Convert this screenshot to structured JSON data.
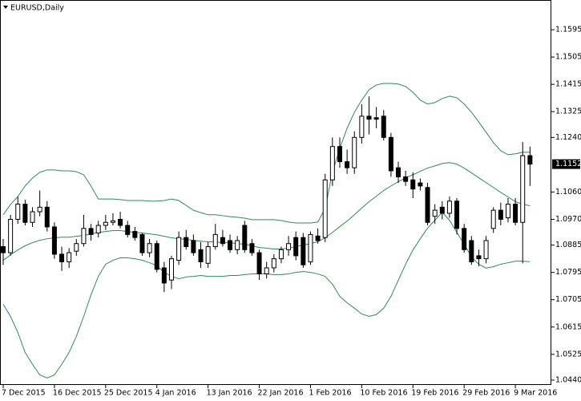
{
  "chart_data": {
    "type": "candlestick",
    "title": "EURUSD,Daily",
    "categories": [
      "7 Dec 2015",
      null,
      null,
      null,
      null,
      null,
      null,
      "16 Dec 2015",
      null,
      null,
      null,
      null,
      null,
      null,
      "25 Dec 2015",
      null,
      null,
      null,
      null,
      null,
      null,
      "4 Jan 2016",
      null,
      null,
      null,
      null,
      null,
      null,
      "13 Jan 2016",
      null,
      null,
      null,
      null,
      null,
      null,
      "22 Jan 2016",
      null,
      null,
      null,
      null,
      null,
      null,
      "1 Feb 2016",
      null,
      null,
      null,
      null,
      null,
      null,
      "10 Feb 2016",
      null,
      null,
      null,
      null,
      null,
      null,
      "19 Feb 2016",
      null,
      null,
      null,
      null,
      null,
      null,
      "29 Feb 2016",
      null,
      null,
      null,
      null,
      null,
      null,
      "9 Mar 2016",
      null,
      null
    ],
    "open": [
      1.088,
      1.086,
      1.097,
      1.102,
      1.096,
      1.0995,
      1.101,
      1.0945,
      1.0855,
      1.083,
      1.0865,
      1.089,
      1.094,
      1.0925,
      1.095,
      1.096,
      1.097,
      1.095,
      1.093,
      1.092,
      1.086,
      1.089,
      1.081,
      1.077,
      1.0835,
      1.091,
      1.09,
      1.087,
      1.0825,
      1.088,
      1.091,
      1.09,
      1.087,
      1.095,
      1.089,
      1.086,
      1.079,
      1.081,
      1.084,
      1.087,
      1.091,
      1.091,
      1.083,
      1.0915,
      1.091,
      1.11,
      1.121,
      1.116,
      1.114,
      1.124,
      1.131,
      1.1305,
      1.131,
      1.124,
      1.114,
      1.111,
      1.11,
      1.109,
      1.1075,
      1.098,
      1.101,
      1.099,
      1.103,
      1.094,
      1.09,
      1.085,
      1.084,
      1.094,
      1.1,
      1.0975,
      1.102,
      1.096,
      1.118
    ],
    "high": [
      1.0905,
      1.0985,
      1.1045,
      1.1035,
      1.101,
      1.1065,
      1.103,
      1.096,
      1.088,
      1.0875,
      1.0905,
      1.0985,
      1.0955,
      1.0965,
      1.0985,
      1.099,
      1.0995,
      1.0965,
      1.0945,
      1.0925,
      1.0905,
      1.09,
      1.083,
      1.085,
      1.093,
      1.0935,
      1.092,
      1.0895,
      1.0895,
      1.0955,
      1.0935,
      1.092,
      1.0915,
      1.0965,
      1.0905,
      1.087,
      1.083,
      1.0855,
      1.088,
      1.0915,
      1.093,
      1.0925,
      1.093,
      1.094,
      1.112,
      1.124,
      1.124,
      1.12,
      1.126,
      1.135,
      1.1375,
      1.134,
      1.133,
      1.1255,
      1.116,
      1.113,
      1.1125,
      1.1105,
      1.109,
      1.102,
      1.103,
      1.1045,
      1.104,
      1.0955,
      1.0915,
      1.087,
      1.0915,
      1.101,
      1.1025,
      1.104,
      1.104,
      1.1225,
      1.121
    ],
    "low": [
      1.082,
      1.085,
      1.0955,
      1.095,
      1.0945,
      1.098,
      1.093,
      1.084,
      1.08,
      1.081,
      1.085,
      1.088,
      1.09,
      1.091,
      1.0935,
      1.095,
      1.094,
      1.091,
      1.09,
      1.085,
      1.0845,
      1.0795,
      1.073,
      1.074,
      1.082,
      1.087,
      1.085,
      1.081,
      1.081,
      1.087,
      1.088,
      1.086,
      1.0855,
      1.086,
      1.085,
      1.077,
      1.0775,
      1.0795,
      1.0825,
      1.085,
      1.0835,
      1.081,
      1.082,
      1.089,
      1.0895,
      1.108,
      1.114,
      1.112,
      1.112,
      1.122,
      1.125,
      1.127,
      1.123,
      1.111,
      1.109,
      1.108,
      1.104,
      1.1065,
      1.095,
      1.0955,
      1.097,
      1.0975,
      1.092,
      1.086,
      1.082,
      1.0815,
      1.0825,
      1.0925,
      1.095,
      1.096,
      1.095,
      1.0825,
      1.108
    ],
    "close": [
      1.086,
      1.097,
      1.102,
      1.096,
      1.0995,
      1.101,
      1.0945,
      1.0855,
      1.083,
      1.086,
      1.089,
      1.094,
      1.092,
      1.095,
      1.096,
      1.0965,
      1.095,
      1.092,
      1.091,
      1.086,
      1.089,
      1.0805,
      1.076,
      1.084,
      1.091,
      1.088,
      1.086,
      1.083,
      1.088,
      1.092,
      1.089,
      1.087,
      1.09,
      1.087,
      1.086,
      1.079,
      1.081,
      1.084,
      1.087,
      1.089,
      1.085,
      1.082,
      1.092,
      1.09,
      1.11,
      1.121,
      1.116,
      1.114,
      1.124,
      1.131,
      1.13,
      1.13,
      1.124,
      1.113,
      1.111,
      1.1095,
      1.107,
      1.108,
      1.096,
      1.1,
      1.099,
      1.103,
      1.094,
      1.087,
      1.083,
      1.084,
      1.09,
      1.1,
      1.097,
      1.102,
      1.096,
      1.118,
      1.1152
    ],
    "bands": {
      "color": "#2e8b57",
      "upper": [
        1.0985,
        1.1019,
        1.1045,
        1.108,
        1.1106,
        1.1125,
        1.1133,
        1.1133,
        1.113,
        1.113,
        1.1127,
        1.1117,
        1.108,
        1.1037,
        1.1037,
        1.1037,
        1.1035,
        1.1032,
        1.1032,
        1.1032,
        1.103,
        1.103,
        1.1032,
        1.1037,
        1.1032,
        1.1016,
        1.1,
        1.0992,
        1.0985,
        1.0985,
        1.0982,
        1.0979,
        1.0977,
        1.0974,
        1.0969,
        1.0969,
        1.0969,
        1.0969,
        1.0966,
        1.0961,
        1.0958,
        1.0958,
        1.0958,
        1.0961,
        1.1006,
        1.1125,
        1.1204,
        1.127,
        1.1323,
        1.1363,
        1.1397,
        1.1413,
        1.1418,
        1.1418,
        1.1416,
        1.1408,
        1.1389,
        1.1363,
        1.135,
        1.1355,
        1.1368,
        1.1376,
        1.1371,
        1.135,
        1.1323,
        1.1291,
        1.1257,
        1.1223,
        1.1196,
        1.1183,
        1.1186,
        1.1191,
        1.1191
      ],
      "middle": [
        1.0835,
        1.0853,
        1.0869,
        1.0883,
        1.0893,
        1.0901,
        1.0906,
        1.0909,
        1.0911,
        1.0911,
        1.0914,
        1.0917,
        1.0922,
        1.0927,
        1.093,
        1.0933,
        1.0933,
        1.093,
        1.0927,
        1.0925,
        1.0922,
        1.0919,
        1.0914,
        1.0909,
        1.0906,
        1.0904,
        1.0901,
        1.0898,
        1.0896,
        1.0896,
        1.0893,
        1.0893,
        1.089,
        1.0888,
        1.0883,
        1.0877,
        1.0875,
        1.0872,
        1.0872,
        1.0875,
        1.088,
        1.0885,
        1.089,
        1.0896,
        1.0909,
        1.0927,
        1.0946,
        1.0964,
        1.0985,
        1.1007,
        1.1028,
        1.1046,
        1.1065,
        1.108,
        1.1094,
        1.1107,
        1.1117,
        1.1128,
        1.1139,
        1.1146,
        1.1154,
        1.1157,
        1.1152,
        1.1139,
        1.1123,
        1.1107,
        1.1091,
        1.1075,
        1.1059,
        1.1044,
        1.1028,
        1.102,
        1.1015
      ],
      "lower": [
        1.069,
        1.065,
        1.0597,
        1.0531,
        1.0492,
        1.0457,
        1.0447,
        1.0457,
        1.0492,
        1.0531,
        1.0584,
        1.065,
        1.0721,
        1.0782,
        1.0822,
        1.0835,
        1.0843,
        1.0843,
        1.084,
        1.0835,
        1.0827,
        1.0817,
        1.0795,
        1.0782,
        1.0774,
        1.078,
        1.0782,
        1.0785,
        1.0782,
        1.0782,
        1.0782,
        1.0785,
        1.0785,
        1.0788,
        1.079,
        1.079,
        1.079,
        1.0788,
        1.0788,
        1.079,
        1.0795,
        1.0798,
        1.0795,
        1.079,
        1.0782,
        1.0756,
        1.0716,
        1.0695,
        1.0677,
        1.0658,
        1.065,
        1.0656,
        1.0677,
        1.0716,
        1.0769,
        1.0822,
        1.0869,
        1.0906,
        1.0941,
        1.0967,
        1.0993,
        1.0967,
        1.0927,
        1.0888,
        1.0846,
        1.0822,
        1.0809,
        1.0814,
        1.0822,
        1.0827,
        1.0832,
        1.0832,
        1.083
      ]
    },
    "up_color": "#ffffff",
    "down_color": "#000000",
    "last_price": 1.1152,
    "ylim": [
      1.0424,
      1.1693
    ],
    "yticks": [
      1.1595,
      1.1505,
      1.1415,
      1.1325,
      {
        "value": 1.124,
        "label": "1.1240"
      },
      {
        "value": 1.106,
        "label": "1.1060"
      },
      {
        "value": 1.097,
        "label": "1.0970"
      },
      1.0885,
      1.0795,
      1.0705,
      1.0615,
      1.0525,
      {
        "value": 1.044,
        "label": "1.0440"
      }
    ]
  }
}
